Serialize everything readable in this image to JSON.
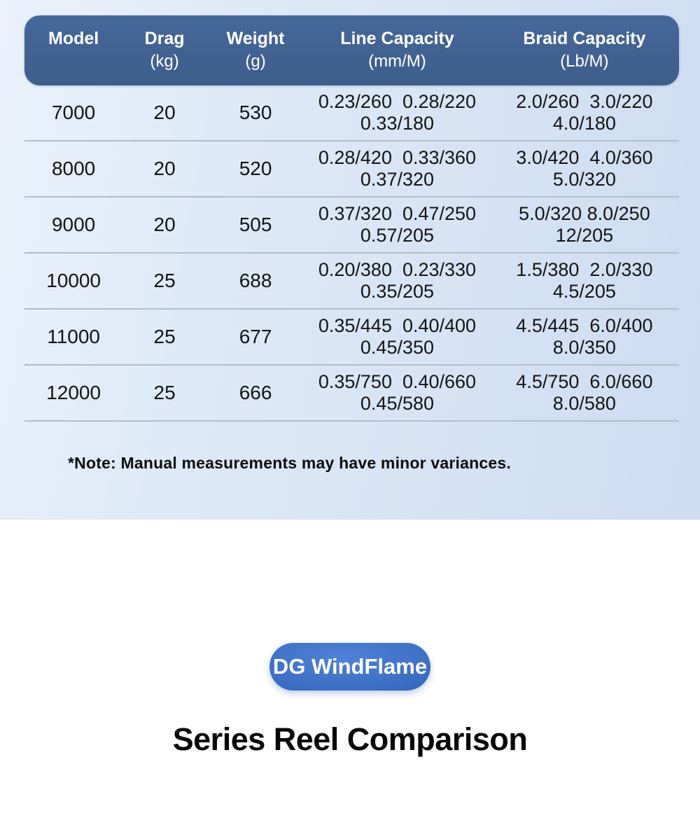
{
  "table": {
    "columns": [
      {
        "label": "Model",
        "unit": ""
      },
      {
        "label": "Drag",
        "unit": "(kg)"
      },
      {
        "label": "Weight",
        "unit": "(g)"
      },
      {
        "label": "Line Capacity",
        "unit": "(mm/M)"
      },
      {
        "label": "Braid Capacity",
        "unit": "(Lb/M)"
      }
    ],
    "rows": [
      {
        "model": "7000",
        "drag": "20",
        "weight": "530",
        "line1": "0.23/260  0.28/220",
        "line2": "0.33/180",
        "braid1": "2.0/260  3.0/220",
        "braid2": "4.0/180"
      },
      {
        "model": "8000",
        "drag": "20",
        "weight": "520",
        "line1": "0.28/420  0.33/360",
        "line2": "0.37/320",
        "braid1": "3.0/420  4.0/360",
        "braid2": "5.0/320"
      },
      {
        "model": "9000",
        "drag": "20",
        "weight": "505",
        "line1": "0.37/320  0.47/250",
        "line2": "0.57/205",
        "braid1": "5.0/320 8.0/250",
        "braid2": "12/205"
      },
      {
        "model": "10000",
        "drag": "25",
        "weight": "688",
        "line1": "0.20/380  0.23/330",
        "line2": "0.35/205",
        "braid1": "1.5/380  2.0/330",
        "braid2": "4.5/205"
      },
      {
        "model": "11000",
        "drag": "25",
        "weight": "677",
        "line1": "0.35/445  0.40/400",
        "line2": "0.45/350",
        "braid1": "4.5/445  6.0/400",
        "braid2": "8.0/350"
      },
      {
        "model": "12000",
        "drag": "25",
        "weight": "666",
        "line1": "0.35/750  0.40/660",
        "line2": "0.45/580",
        "braid1": "4.5/750  6.0/660",
        "braid2": "8.0/580"
      }
    ],
    "note": "*Note: Manual measurements may have minor variances."
  },
  "footer": {
    "badge_label": "DG WindFlame",
    "title": "Series Reel Comparison"
  },
  "colors": {
    "header_bg": "#40618e",
    "page_blue": "#d9e6f6",
    "badge_blue_light": "#4f82d6",
    "badge_blue_dark": "#2b5cab",
    "divider": "#b3bdc9",
    "text": "#141414"
  }
}
